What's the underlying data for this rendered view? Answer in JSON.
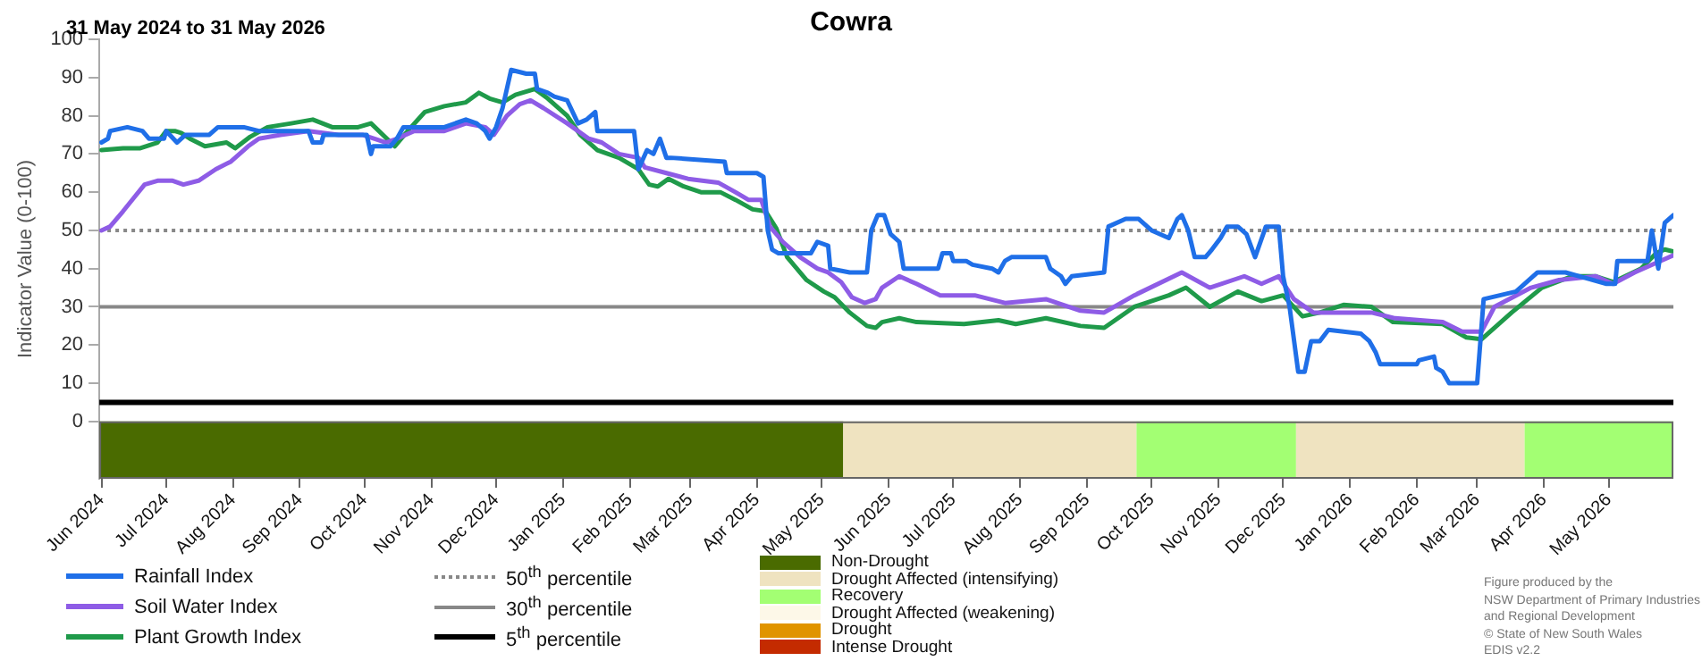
{
  "chart_data": {
    "type": "line",
    "title": "Cowra",
    "subtitle": "31 May 2024 to 31 May 2026",
    "ylabel": "Indicator Value (0-100)",
    "xlim": [
      "2024-05-31",
      "2026-05-31"
    ],
    "xticks": [
      {
        "value": "2024-06-01",
        "label": "Jun 2024"
      },
      {
        "value": "2024-07-01",
        "label": "Jul 2024"
      },
      {
        "value": "2024-08-01",
        "label": "Aug 2024"
      },
      {
        "value": "2024-09-01",
        "label": "Sep 2024"
      },
      {
        "value": "2024-10-01",
        "label": "Oct 2024"
      },
      {
        "value": "2024-11-01",
        "label": "Nov 2024"
      },
      {
        "value": "2024-12-01",
        "label": "Dec 2024"
      },
      {
        "value": "2025-01-01",
        "label": "Jan 2025"
      },
      {
        "value": "2025-02-01",
        "label": "Feb 2025"
      },
      {
        "value": "2025-03-01",
        "label": "Mar 2025"
      },
      {
        "value": "2025-04-01",
        "label": "Apr 2025"
      },
      {
        "value": "2025-05-01",
        "label": "May 2025"
      },
      {
        "value": "2025-06-01",
        "label": "Jun 2025"
      },
      {
        "value": "2025-07-01",
        "label": "Jul 2025"
      },
      {
        "value": "2025-08-01",
        "label": "Aug 2025"
      },
      {
        "value": "2025-09-01",
        "label": "Sep 2025"
      },
      {
        "value": "2025-10-01",
        "label": "Oct 2025"
      },
      {
        "value": "2025-11-01",
        "label": "Nov 2025"
      },
      {
        "value": "2025-12-01",
        "label": "Dec 2025"
      },
      {
        "value": "2026-01-01",
        "label": "Jan 2026"
      },
      {
        "value": "2026-02-01",
        "label": "Feb 2026"
      },
      {
        "value": "2026-03-01",
        "label": "Mar 2026"
      },
      {
        "value": "2026-04-01",
        "label": "Apr 2026"
      },
      {
        "value": "2026-05-01",
        "label": "May 2026"
      }
    ],
    "ylim": [
      -15,
      100
    ],
    "yticks": [
      0,
      10,
      20,
      30,
      40,
      50,
      60,
      70,
      80,
      90,
      100
    ],
    "grid": false,
    "legend": "bottom",
    "marker": "none",
    "line_style": "solid",
    "series": [
      {
        "name": "Rainfall Index",
        "color": "#1f6fe8",
        "x": [
          "2024-06-01",
          "2024-06-04",
          "2024-06-05",
          "2024-06-13",
          "2024-06-20",
          "2024-06-23",
          "2024-06-30",
          "2024-07-01",
          "2024-07-06",
          "2024-07-10",
          "2024-07-21",
          "2024-07-25",
          "2024-08-06",
          "2024-08-13",
          "2024-08-21",
          "2024-09-05",
          "2024-09-07",
          "2024-09-11",
          "2024-09-12",
          "2024-10-02",
          "2024-10-04",
          "2024-10-05",
          "2024-10-13",
          "2024-10-16",
          "2024-10-19",
          "2024-11-07",
          "2024-11-17",
          "2024-11-22",
          "2024-11-26",
          "2024-11-28",
          "2024-12-01",
          "2024-12-04",
          "2024-12-08",
          "2024-12-15",
          "2024-12-19",
          "2024-12-20",
          "2024-12-25",
          "2024-12-28",
          "2025-01-03",
          "2025-01-08",
          "2025-01-12",
          "2025-01-16",
          "2025-01-17",
          "2025-02-03",
          "2025-02-05",
          "2025-02-09",
          "2025-02-12",
          "2025-02-15",
          "2025-02-18",
          "2025-02-20",
          "2025-03-17",
          "2025-03-18",
          "2025-04-01",
          "2025-04-04",
          "2025-04-06",
          "2025-04-08",
          "2025-04-11",
          "2025-04-26",
          "2025-04-29",
          "2025-05-04",
          "2025-05-05",
          "2025-05-14",
          "2025-05-22",
          "2025-05-24",
          "2025-05-27",
          "2025-05-30",
          "2025-06-02",
          "2025-06-06",
          "2025-06-08",
          "2025-06-24",
          "2025-06-26",
          "2025-06-30",
          "2025-07-01",
          "2025-07-07",
          "2025-07-10",
          "2025-07-19",
          "2025-07-22",
          "2025-07-25",
          "2025-07-28",
          "2025-08-13",
          "2025-08-15",
          "2025-08-20",
          "2025-08-22",
          "2025-08-25",
          "2025-09-09",
          "2025-09-11",
          "2025-09-19",
          "2025-09-25",
          "2025-10-01",
          "2025-10-09",
          "2025-10-13",
          "2025-10-15",
          "2025-10-18",
          "2025-10-21",
          "2025-10-26",
          "2025-10-29",
          "2025-11-02",
          "2025-11-05",
          "2025-11-10",
          "2025-11-14",
          "2025-11-18",
          "2025-11-23",
          "2025-11-29",
          "2025-12-01",
          "2025-12-04",
          "2025-12-08",
          "2025-12-11",
          "2025-12-14",
          "2025-12-18",
          "2025-12-22",
          "2026-01-06",
          "2026-01-10",
          "2026-01-13",
          "2026-01-15",
          "2026-02-01",
          "2026-02-02",
          "2026-02-09",
          "2026-02-10",
          "2026-02-13",
          "2026-02-16",
          "2026-03-01",
          "2026-03-04",
          "2026-03-19",
          "2026-03-29",
          "2026-04-11",
          "2026-04-30",
          "2026-05-04",
          "2026-05-05",
          "2026-05-19",
          "2026-05-21",
          "2026-05-24",
          "2026-05-27",
          "2026-05-31"
        ],
        "values": [
          73,
          74,
          76,
          77,
          76,
          74,
          74,
          76,
          73,
          75,
          75,
          77,
          77,
          76,
          76,
          76,
          73,
          73,
          75,
          75,
          70,
          72,
          72,
          74,
          77,
          77,
          79,
          78,
          76,
          74,
          77,
          82,
          92,
          91,
          91,
          87,
          86,
          85,
          84,
          78,
          79,
          81,
          76,
          76,
          66,
          71,
          70,
          74,
          69,
          69,
          68,
          65,
          65,
          64,
          50,
          45,
          44,
          44,
          47,
          46,
          40,
          39,
          39,
          50,
          54,
          54,
          49,
          47,
          40,
          40,
          44,
          44,
          42,
          42,
          41,
          40,
          39,
          42,
          43,
          43,
          40,
          38,
          36,
          38,
          39,
          51,
          53,
          53,
          50,
          48,
          53,
          54,
          50,
          43,
          43,
          45,
          48,
          51,
          51,
          49,
          43,
          51,
          51,
          38,
          30,
          13,
          13,
          21,
          21,
          24,
          23,
          21,
          18,
          15,
          15,
          16,
          17,
          14,
          13,
          10,
          10,
          32,
          34,
          39,
          39,
          36,
          36,
          42,
          42,
          50,
          40,
          52,
          54
        ]
      },
      {
        "name": "Soil Water Index",
        "color": "#8e5ce6",
        "x": [
          "2024-06-01",
          "2024-06-05",
          "2024-06-11",
          "2024-06-16",
          "2024-06-21",
          "2024-06-27",
          "2024-07-04",
          "2024-07-09",
          "2024-07-16",
          "2024-07-24",
          "2024-07-31",
          "2024-08-08",
          "2024-08-13",
          "2024-08-23",
          "2024-09-05",
          "2024-09-19",
          "2024-09-30",
          "2024-10-11",
          "2024-10-16",
          "2024-10-24",
          "2024-11-07",
          "2024-11-17",
          "2024-11-26",
          "2024-11-30",
          "2024-12-06",
          "2024-12-12",
          "2024-12-17",
          "2024-12-23",
          "2025-01-03",
          "2025-01-13",
          "2025-01-19",
          "2025-01-27",
          "2025-02-05",
          "2025-02-08",
          "2025-02-18",
          "2025-02-28",
          "2025-03-14",
          "2025-03-22",
          "2025-03-28",
          "2025-04-03",
          "2025-04-07",
          "2025-04-13",
          "2025-04-21",
          "2025-04-29",
          "2025-05-04",
          "2025-05-10",
          "2025-05-15",
          "2025-05-21",
          "2025-05-26",
          "2025-05-29",
          "2025-06-06",
          "2025-06-14",
          "2025-06-25",
          "2025-07-11",
          "2025-07-25",
          "2025-08-13",
          "2025-08-29",
          "2025-09-09",
          "2025-09-23",
          "2025-10-15",
          "2025-10-28",
          "2025-11-13",
          "2025-11-21",
          "2025-11-29",
          "2025-12-06",
          "2025-12-15",
          "2026-01-11",
          "2026-01-22",
          "2026-02-13",
          "2026-02-22",
          "2026-03-03",
          "2026-03-09",
          "2026-03-26",
          "2026-04-08",
          "2026-04-25",
          "2026-05-03",
          "2026-05-13",
          "2026-05-31"
        ],
        "values": [
          50,
          51,
          55,
          58.5,
          62,
          63,
          63,
          62,
          63,
          66,
          68,
          72,
          74,
          75,
          76,
          75,
          75,
          73,
          74,
          76,
          76,
          78,
          77,
          75,
          80,
          83,
          84,
          82,
          78,
          74,
          73,
          70,
          69,
          66.5,
          65,
          63.5,
          62.5,
          60,
          58,
          58,
          51,
          47,
          43,
          40,
          39,
          36.5,
          32.5,
          31,
          32,
          35,
          38,
          36,
          33,
          33,
          31,
          32,
          29,
          28.5,
          33,
          39,
          35,
          38,
          36,
          38,
          32,
          28.5,
          28.5,
          27,
          26,
          23.5,
          23.5,
          30,
          35,
          37,
          38,
          36,
          39,
          43.5
        ]
      },
      {
        "name": "Plant Growth Index",
        "color": "#1f9a4a",
        "x": [
          "2024-06-01",
          "2024-06-11",
          "2024-06-19",
          "2024-06-27",
          "2024-07-01",
          "2024-07-05",
          "2024-07-08",
          "2024-07-12",
          "2024-07-19",
          "2024-07-29",
          "2024-08-02",
          "2024-08-09",
          "2024-08-17",
          "2024-08-28",
          "2024-09-07",
          "2024-09-16",
          "2024-09-28",
          "2024-10-04",
          "2024-10-15",
          "2024-10-21",
          "2024-10-29",
          "2024-11-07",
          "2024-11-17",
          "2024-11-23",
          "2024-11-28",
          "2024-12-04",
          "2024-12-10",
          "2024-12-19",
          "2024-12-25",
          "2025-01-03",
          "2025-01-09",
          "2025-01-17",
          "2025-01-27",
          "2025-02-02",
          "2025-02-05",
          "2025-02-10",
          "2025-02-14",
          "2025-02-19",
          "2025-02-26",
          "2025-03-06",
          "2025-03-15",
          "2025-03-22",
          "2025-03-30",
          "2025-04-05",
          "2025-04-10",
          "2025-04-15",
          "2025-04-24",
          "2025-05-02",
          "2025-05-07",
          "2025-05-14",
          "2025-05-22",
          "2025-05-26",
          "2025-05-29",
          "2025-06-06",
          "2025-06-14",
          "2025-07-06",
          "2025-07-22",
          "2025-07-30",
          "2025-08-13",
          "2025-08-29",
          "2025-09-09",
          "2025-09-23",
          "2025-10-09",
          "2025-10-17",
          "2025-10-28",
          "2025-11-10",
          "2025-11-21",
          "2025-12-01",
          "2025-12-10",
          "2025-12-18",
          "2025-12-29",
          "2026-01-11",
          "2026-01-21",
          "2026-02-13",
          "2026-02-24",
          "2026-03-03",
          "2026-03-17",
          "2026-03-31",
          "2026-04-14",
          "2026-04-25",
          "2026-05-03",
          "2026-05-16",
          "2026-05-23",
          "2026-05-27",
          "2026-05-31"
        ],
        "values": [
          71,
          71.5,
          71.5,
          73,
          76,
          76,
          75.5,
          74,
          72,
          73,
          71.5,
          74.5,
          77,
          78,
          79,
          77,
          77,
          78,
          72,
          76,
          81,
          82.5,
          83.5,
          86,
          84.5,
          83.5,
          85.5,
          87,
          84.5,
          80,
          75,
          71,
          69,
          67,
          66,
          62,
          61.5,
          63.5,
          61.5,
          60,
          60,
          58,
          55.5,
          55,
          50.5,
          43,
          37,
          34,
          32.5,
          28.5,
          25,
          24.5,
          26,
          27,
          26,
          25.5,
          26.5,
          25.5,
          27,
          25,
          24.5,
          30,
          33,
          35,
          30,
          34,
          31.5,
          33,
          27.5,
          28.5,
          30.5,
          30,
          26,
          25.5,
          22,
          21.5,
          28.5,
          35,
          38,
          38,
          36.5,
          40,
          44,
          45,
          44.5
        ]
      }
    ],
    "ref_lines": [
      {
        "axis": "y",
        "value": 50,
        "label": "50$^{th}$ percentile",
        "color": "#888888",
        "line_style": "dotted"
      },
      {
        "axis": "y",
        "value": 30,
        "label": "30$^{th}$ percentile",
        "color": "#888888",
        "line_style": "solid"
      },
      {
        "axis": "y",
        "value": 5,
        "label": "5$^{th}$ percentile",
        "color": "#000000",
        "line_style": "solid"
      }
    ],
    "bands": [
      {
        "axis": "x",
        "from": "2024-05-31",
        "to": "2025-05-11",
        "label": "Non-Drought",
        "color": "#4a6b00"
      },
      {
        "axis": "x",
        "from": "2025-05-11",
        "to": "2025-09-24",
        "label": "Drought Affected (intensifying)",
        "color": "#efe3c0"
      },
      {
        "axis": "x",
        "from": "2025-09-24",
        "to": "2025-12-07",
        "label": "Recovery",
        "color": "#a3ff73"
      },
      {
        "axis": "x",
        "from": "2025-12-07",
        "to": "2026-03-23",
        "color": "#efe3c0"
      },
      {
        "axis": "x",
        "from": "2026-03-23",
        "to": "2026-05-31",
        "color": "#a3ff73"
      }
    ],
    "annotations": [
      "Drought Affected (weakening)",
      "Drought",
      "Intense Drought",
      "Figure produced by the\nNSW Department of Primary Industries\nand Regional Development\n© State of New South Wales\nEDIS v2.2"
    ]
  }
}
